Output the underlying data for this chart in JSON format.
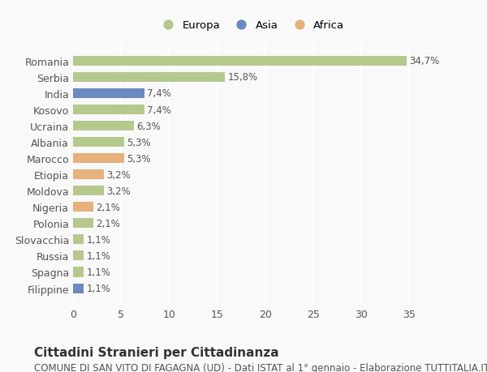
{
  "categories": [
    "Romania",
    "Serbia",
    "India",
    "Kosovo",
    "Ucraina",
    "Albania",
    "Marocco",
    "Etiopia",
    "Moldova",
    "Nigeria",
    "Polonia",
    "Slovacchia",
    "Russia",
    "Spagna",
    "Filippine"
  ],
  "values": [
    34.7,
    15.8,
    7.4,
    7.4,
    6.3,
    5.3,
    5.3,
    3.2,
    3.2,
    2.1,
    2.1,
    1.1,
    1.1,
    1.1,
    1.1
  ],
  "labels": [
    "34,7%",
    "15,8%",
    "7,4%",
    "7,4%",
    "6,3%",
    "5,3%",
    "5,3%",
    "3,2%",
    "3,2%",
    "2,1%",
    "2,1%",
    "1,1%",
    "1,1%",
    "1,1%",
    "1,1%"
  ],
  "colors": [
    "#b5c98e",
    "#b5c98e",
    "#6b8abf",
    "#b5c98e",
    "#b5c98e",
    "#b5c98e",
    "#e8b07a",
    "#e8b07a",
    "#b5c98e",
    "#e8b07a",
    "#b5c98e",
    "#b5c98e",
    "#b5c98e",
    "#b5c98e",
    "#6b8abf"
  ],
  "legend_labels": [
    "Europa",
    "Asia",
    "Africa"
  ],
  "legend_colors": [
    "#b5c98e",
    "#6b8abf",
    "#e8b07a"
  ],
  "title": "Cittadini Stranieri per Cittadinanza",
  "subtitle": "COMUNE DI SAN VITO DI FAGAGNA (UD) - Dati ISTAT al 1° gennaio - Elaborazione TUTTITALIA.IT",
  "xlim": [
    0,
    37
  ],
  "xticks": [
    0,
    5,
    10,
    15,
    20,
    25,
    30,
    35
  ],
  "background_color": "#f9f9f9",
  "grid_color": "#ffffff",
  "bar_height": 0.6,
  "title_fontsize": 11,
  "subtitle_fontsize": 8.5,
  "tick_fontsize": 9,
  "label_fontsize": 8.5
}
